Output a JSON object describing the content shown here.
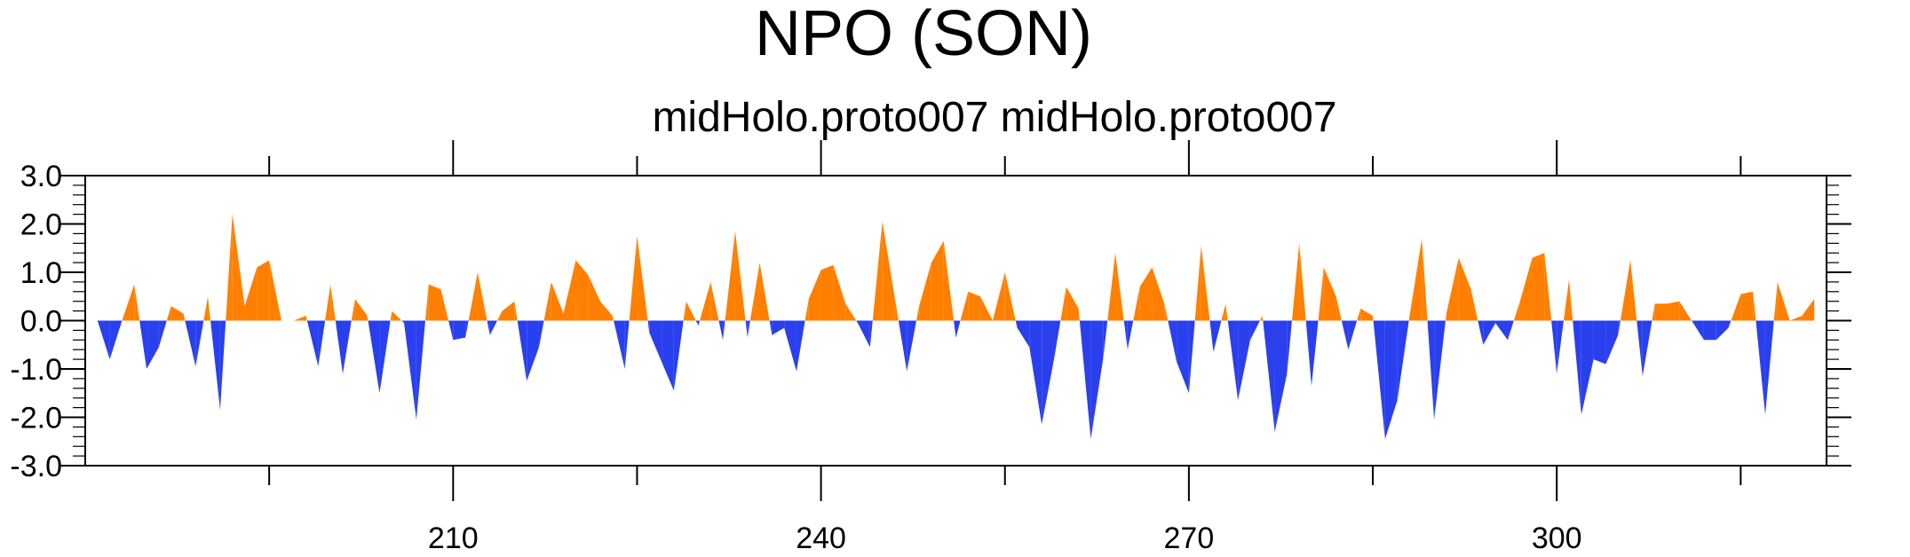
{
  "chart_data": {
    "type": "area",
    "title": "NPO (SON)",
    "subtitle": "midHolo.proto007  midHolo.proto007",
    "xlabel": "",
    "ylabel": "",
    "x_start": 181,
    "x_step": 1,
    "xlim": [
      180,
      322
    ],
    "ylim": [
      -3.0,
      3.0
    ],
    "x_ticks": [
      210,
      240,
      270,
      300
    ],
    "y_ticks": [
      "3.0",
      "2.0",
      "1.0",
      "0.0",
      "-1.0",
      "-2.0",
      "-3.0"
    ],
    "positive_color": "#ff8000",
    "negative_color": "#2a40ee",
    "grid": false,
    "values": [
      0.0,
      -0.8,
      0.0,
      0.75,
      -1.0,
      -0.55,
      0.3,
      0.15,
      -0.95,
      0.5,
      -1.85,
      2.2,
      0.3,
      1.1,
      1.25,
      0.0,
      0.0,
      0.1,
      -0.95,
      0.75,
      -1.1,
      0.45,
      0.1,
      -1.5,
      0.2,
      -0.05,
      -2.05,
      0.75,
      0.65,
      -0.4,
      -0.35,
      1.0,
      -0.3,
      0.2,
      0.4,
      -1.25,
      -0.55,
      0.8,
      0.15,
      1.25,
      0.95,
      0.4,
      0.1,
      -1.0,
      1.75,
      -0.25,
      -0.85,
      -1.45,
      0.4,
      -0.1,
      0.8,
      -0.4,
      1.85,
      -0.35,
      1.2,
      -0.3,
      -0.15,
      -1.05,
      0.45,
      1.05,
      1.15,
      0.35,
      -0.05,
      -0.55,
      2.05,
      0.5,
      -1.05,
      0.3,
      1.2,
      1.65,
      -0.35,
      0.6,
      0.5,
      0.0,
      1.0,
      -0.15,
      -0.55,
      -2.15,
      -0.8,
      0.7,
      0.25,
      -2.45,
      -0.8,
      1.4,
      -0.6,
      0.7,
      1.1,
      0.35,
      -0.85,
      -1.5,
      1.55,
      -0.65,
      0.35,
      -1.65,
      -0.4,
      0.1,
      -2.3,
      -1.1,
      1.6,
      -1.35,
      1.1,
      0.5,
      -0.6,
      0.25,
      0.1,
      -2.45,
      -1.65,
      0.1,
      1.7,
      -2.05,
      0.15,
      1.3,
      0.65,
      -0.5,
      -0.05,
      -0.4,
      0.4,
      1.3,
      1.4,
      -1.1,
      0.85,
      -1.95,
      -0.8,
      -0.9,
      -0.3,
      1.25,
      -1.15,
      0.35,
      0.35,
      0.4,
      0.0,
      -0.4,
      -0.4,
      -0.15,
      0.55,
      0.6,
      -1.95,
      0.8,
      0.0,
      0.1,
      0.45
    ]
  }
}
